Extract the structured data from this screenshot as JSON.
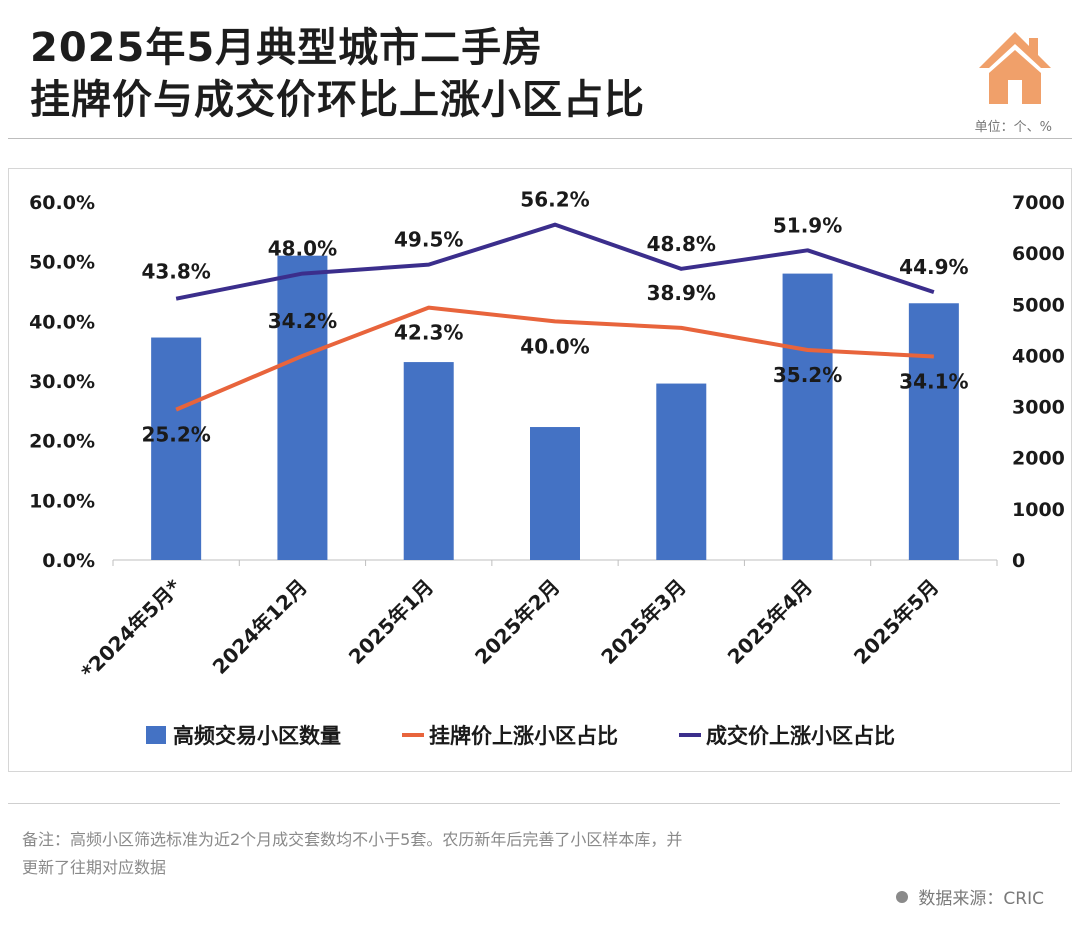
{
  "header": {
    "title_line1": "2025年5月典型城市二手房",
    "title_line2": "挂牌价与成交价环比上涨小区占比",
    "unit": "单位：个、%",
    "icon": "house-icon"
  },
  "footer": {
    "note_line1": "备注：高频小区筛选标准为近2个月成交套数均不小于5套。农历新年后完善了小区样本库，并",
    "note_line2": "更新了往期对应数据",
    "source": "数据来源：CRIC"
  },
  "colors": {
    "bar": "#4472C4",
    "listing_line": "#E8643C",
    "deal_line": "#3B2E8C",
    "house": "#F0A06A"
  },
  "chart_data": {
    "type": "bar+line",
    "categories": [
      "*2024年5月*",
      "2024年12月",
      "2025年1月",
      "2025年2月",
      "2025年3月",
      "2025年4月",
      "2025年5月"
    ],
    "series": [
      {
        "name": "高频交易小区数量",
        "type": "bar",
        "axis": "right",
        "values": [
          4350,
          5950,
          3870,
          2600,
          3450,
          5600,
          5020
        ]
      },
      {
        "name": "挂牌价上涨小区占比",
        "type": "line",
        "axis": "left",
        "values": [
          25.2,
          34.2,
          42.3,
          40.0,
          38.9,
          35.2,
          34.1
        ],
        "labels": [
          "25.2%",
          "34.2%",
          "42.3%",
          "40.0%",
          "38.9%",
          "35.2%",
          "34.1%"
        ]
      },
      {
        "name": "成交价上涨小区占比",
        "type": "line",
        "axis": "left",
        "values": [
          43.8,
          48.0,
          49.5,
          56.2,
          48.8,
          51.9,
          44.9
        ],
        "labels": [
          "43.8%",
          "48.0%",
          "49.5%",
          "56.2%",
          "48.8%",
          "51.9%",
          "44.9%"
        ]
      }
    ],
    "left_axis": {
      "min": 0,
      "max": 60,
      "ticks": [
        "0.0%",
        "10.0%",
        "20.0%",
        "30.0%",
        "40.0%",
        "50.0%",
        "60.0%"
      ]
    },
    "right_axis": {
      "min": 0,
      "max": 7000,
      "ticks": [
        "0",
        "1000",
        "2000",
        "3000",
        "4000",
        "5000",
        "6000",
        "7000"
      ]
    },
    "legend": [
      "高频交易小区数量",
      "挂牌价上涨小区占比",
      "成交价上涨小区占比"
    ],
    "legend_position": "bottom"
  }
}
